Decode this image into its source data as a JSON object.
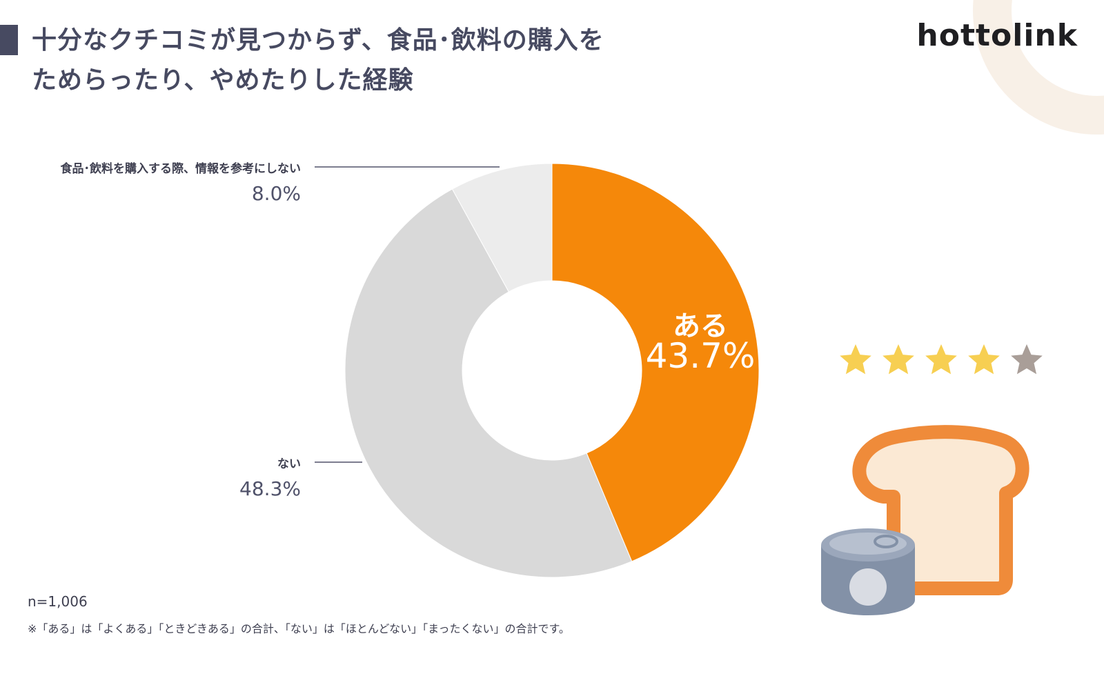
{
  "title": {
    "line1": "十分なクチコミが見つからず、食品･飲料の購入を",
    "line2": "ためらったり、やめたりした経験"
  },
  "logo": "hottolink",
  "chart_data": {
    "type": "pie",
    "variant": "donut",
    "categories": [
      "ある",
      "ない",
      "食品･飲料を購入する際、情報を参考にしない"
    ],
    "values": [
      43.7,
      48.3,
      8.0
    ],
    "labels": [
      "43.7%",
      "48.3%",
      "8.0%"
    ],
    "colors": [
      "#f5880a",
      "#d9d9d9",
      "#ececec"
    ],
    "start": "12 o'clock",
    "direction": "clockwise"
  },
  "sample": "n=1,006",
  "footnote": "※「ある」は「よくある」「ときどきある」の合計、「ない」は「ほとんどない」「まったくない」の合計です。",
  "illustration": {
    "rating_stars": 4,
    "rating_max": 5,
    "icons": [
      "star-icon",
      "bread-icon",
      "can-icon"
    ],
    "star_color": "#f7cf52",
    "star_empty_color": "#a99e98"
  },
  "colors": {
    "accent": "#f5880a",
    "title": "#474a61",
    "ring": "#f8f0e7"
  }
}
